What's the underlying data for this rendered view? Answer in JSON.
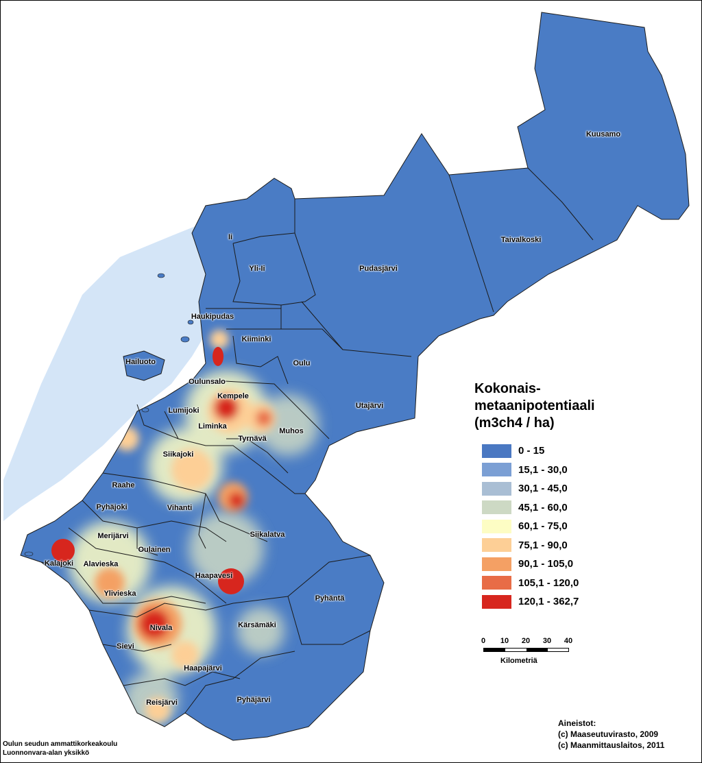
{
  "map": {
    "municipalities": [
      "Kuusamo",
      "Taivalkoski",
      "Pudasjärvi",
      "Ii",
      "Yli-Ii",
      "Haukipudas",
      "Kiiminki",
      "Oulu",
      "Hailuoto",
      "Oulunsalo",
      "Kempele",
      "Utajärvi",
      "Lumijoki",
      "Liminka",
      "Tyrnävä",
      "Muhos",
      "Siikajoki",
      "Raahe",
      "Pyhäjoki",
      "Vihanti",
      "Merijärvi",
      "Siikalatva",
      "Oulainen",
      "Kalajoki",
      "Alavieska",
      "Haapavesi",
      "Ylivieska",
      "Pyhäntä",
      "Nivala",
      "Kärsämäki",
      "Sievi",
      "Haapajärvi",
      "Pyhäjärvi",
      "Reisjärvi"
    ],
    "colors": {
      "sea": "#d4e5f7",
      "land": "#4a7cc5",
      "border": "#1a1a1a"
    }
  },
  "legend": {
    "title_lines": [
      "Kokonais-",
      "metaanipotentiaali",
      "(m3ch4 / ha)"
    ],
    "classes": [
      {
        "range": "0 - 15",
        "color": "#4a78c2"
      },
      {
        "range": "15,1 - 30,0",
        "color": "#7b9fd4"
      },
      {
        "range": "30,1 - 45,0",
        "color": "#a9bed4"
      },
      {
        "range": "45,1 - 60,0",
        "color": "#cdd9c4"
      },
      {
        "range": "60,1 - 75,0",
        "color": "#fdfdc4"
      },
      {
        "range": "75,1 - 90,0",
        "color": "#fdcf96"
      },
      {
        "range": "90,1 - 105,0",
        "color": "#f4a064"
      },
      {
        "range": "105,1 - 120,0",
        "color": "#e86c46"
      },
      {
        "range": "120,1 - 362,7",
        "color": "#d7261e"
      }
    ]
  },
  "scale": {
    "ticks": [
      "0",
      "10",
      "20",
      "30",
      "40"
    ],
    "unit": "Kilometriä"
  },
  "sources": {
    "heading": "Aineistot:",
    "lines": [
      "(c) Maaseutuvirasto, 2009",
      "(c) Maanmittauslaitos, 2011"
    ]
  },
  "producer": {
    "lines": [
      "Oulun seudun ammattikorkeakoulu",
      "Luonnonvara-alan yksikkö"
    ]
  }
}
